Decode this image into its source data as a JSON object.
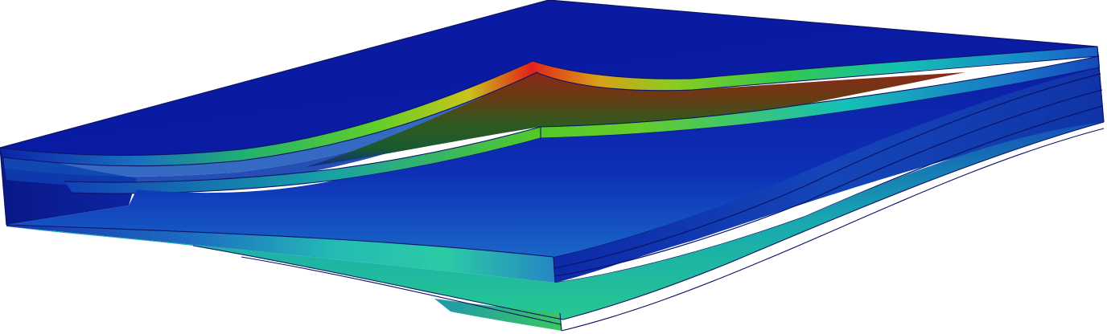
{
  "scene": {
    "subject": "deformed-layered-plate-contour",
    "colors": {
      "low": "#0a1a9e",
      "low_mid": "#1660c8",
      "mid": "#12c2c2",
      "mid_high": "#5fcf2a",
      "high_mid": "#c8c41c",
      "high": "#e2221a",
      "edge": "#0b1466",
      "background": "#ffffff"
    },
    "layers": 4
  }
}
